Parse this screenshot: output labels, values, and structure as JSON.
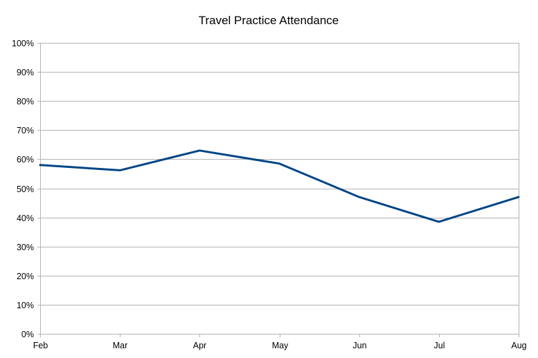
{
  "chart_data": {
    "type": "line",
    "title": "Travel Practice Attendance",
    "xlabel": "",
    "ylabel": "",
    "categories": [
      "Feb",
      "Mar",
      "Apr",
      "May",
      "Jun",
      "Jul",
      "Aug"
    ],
    "series": [
      {
        "values": [
          58,
          56.2,
          63,
          58.5,
          47,
          38.5,
          47
        ],
        "color": "#004586"
      }
    ],
    "ylim": [
      0,
      100
    ],
    "y_ticks": [
      "0%",
      "10%",
      "20%",
      "30%",
      "40%",
      "50%",
      "60%",
      "70%",
      "80%",
      "90%",
      "100%"
    ],
    "y_tick_values": [
      0,
      10,
      20,
      30,
      40,
      50,
      60,
      70,
      80,
      90,
      100
    ],
    "grid": true,
    "legend": "none"
  }
}
